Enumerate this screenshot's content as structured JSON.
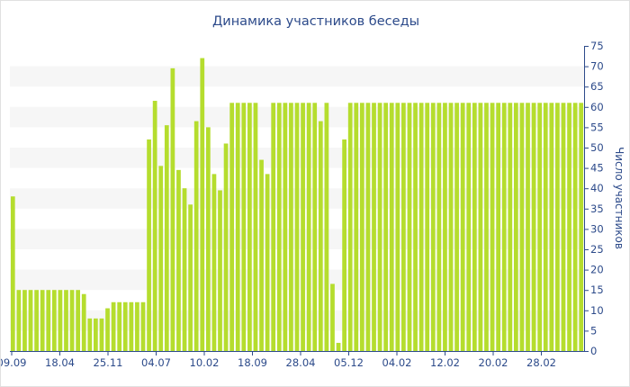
{
  "chart_data": {
    "type": "bar",
    "title": "Динамика участников беседы",
    "xlabel": "",
    "ylabel": "Число участников",
    "x_tick_labels": [
      "09.09",
      "18.04",
      "25.11",
      "04.07",
      "10.02",
      "18.09",
      "28.04",
      "05.12",
      "04.02",
      "12.02",
      "20.02",
      "28.02"
    ],
    "y_axis_position": "right",
    "y_ticks": [
      0,
      5,
      10,
      15,
      20,
      25,
      30,
      35,
      40,
      45,
      50,
      55,
      60,
      65,
      70,
      75
    ],
    "ylim": [
      0,
      75
    ],
    "grid": "alternating horizontal bands",
    "legend": "none",
    "bar_color": "#b5dd2e",
    "band_color": "#f6f6f6",
    "text_color": "#2c4a8a",
    "values": [
      38,
      15,
      15,
      15,
      15,
      15,
      15,
      15,
      15,
      15,
      15,
      15,
      14,
      8,
      8,
      8,
      10.5,
      12,
      12,
      12,
      12,
      12,
      12,
      52,
      61.5,
      45.5,
      55.5,
      69.5,
      44.5,
      40,
      36,
      56.5,
      72,
      55,
      43.5,
      39.5,
      51,
      61,
      61,
      61,
      61,
      61,
      47,
      43.5,
      61,
      61,
      61,
      61,
      61,
      61,
      61,
      61,
      56.5,
      61,
      16.5,
      2,
      52,
      61,
      61,
      61,
      61,
      61,
      61,
      61,
      61,
      61,
      61,
      61,
      61,
      61,
      61,
      61,
      61,
      61,
      61,
      61,
      61,
      61,
      61,
      61,
      61,
      61,
      61,
      61,
      61,
      61,
      61,
      61,
      61,
      61,
      61,
      61,
      61,
      61,
      61,
      61,
      61
    ]
  }
}
